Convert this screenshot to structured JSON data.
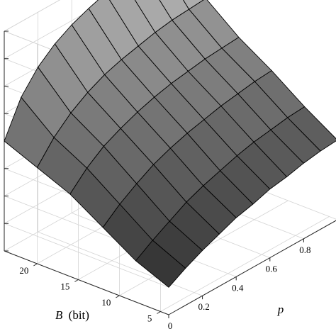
{
  "chart_data": {
    "type": "surface",
    "x_axis": {
      "label_var": "p",
      "ticks": [
        "0",
        "0.2",
        "0.4",
        "0.6",
        "0.8"
      ],
      "range": [
        0,
        1
      ]
    },
    "y_axis": {
      "label_var": "B",
      "label_unit": "(bit)",
      "ticks": [
        "5",
        "10",
        "15",
        "20"
      ],
      "range": [
        4,
        24
      ]
    },
    "z_axis": {
      "tick_labels_visible": false
    },
    "grid": true,
    "colormap": "gray",
    "p_values": [
      0,
      0.1,
      0.2,
      0.3,
      0.4,
      0.5,
      0.6,
      0.7,
      0.8,
      0.9,
      1.0
    ],
    "B_values": [
      4,
      8,
      12,
      16,
      20,
      24
    ],
    "z_values": [
      [
        0.2,
        0.27,
        0.33,
        0.38,
        0.43,
        0.46,
        0.5,
        0.52,
        0.55,
        0.57,
        0.58
      ],
      [
        0.3,
        0.38,
        0.45,
        0.52,
        0.57,
        0.61,
        0.65,
        0.68,
        0.7,
        0.72,
        0.73
      ],
      [
        0.45,
        0.55,
        0.63,
        0.7,
        0.75,
        0.79,
        0.82,
        0.85,
        0.87,
        0.89,
        0.9
      ],
      [
        0.6,
        0.72,
        0.81,
        0.87,
        0.92,
        0.96,
        0.99,
        1.01,
        1.03,
        1.04,
        1.05
      ],
      [
        0.7,
        0.85,
        0.96,
        1.04,
        1.1,
        1.14,
        1.17,
        1.2,
        1.22,
        1.23,
        1.24
      ],
      [
        0.8,
        1.05,
        1.2,
        1.3,
        1.37,
        1.42,
        1.46,
        1.49,
        1.51,
        1.53,
        1.55
      ]
    ]
  }
}
